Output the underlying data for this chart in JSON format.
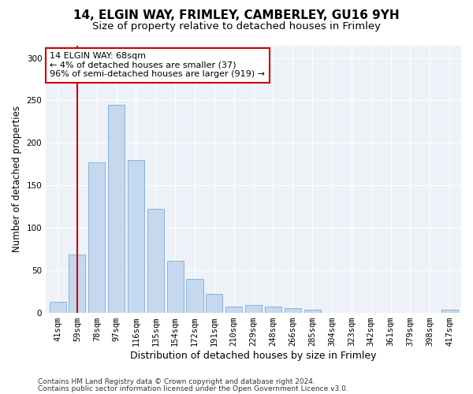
{
  "title_line1": "14, ELGIN WAY, FRIMLEY, CAMBERLEY, GU16 9YH",
  "title_line2": "Size of property relative to detached houses in Frimley",
  "xlabel": "Distribution of detached houses by size in Frimley",
  "ylabel": "Number of detached properties",
  "categories": [
    "41sqm",
    "59sqm",
    "78sqm",
    "97sqm",
    "116sqm",
    "135sqm",
    "154sqm",
    "172sqm",
    "191sqm",
    "210sqm",
    "229sqm",
    "248sqm",
    "266sqm",
    "285sqm",
    "304sqm",
    "323sqm",
    "342sqm",
    "361sqm",
    "379sqm",
    "398sqm",
    "417sqm"
  ],
  "values": [
    13,
    68,
    177,
    245,
    180,
    122,
    61,
    40,
    22,
    7,
    9,
    7,
    5,
    3,
    0,
    0,
    0,
    0,
    0,
    0,
    3
  ],
  "bar_color": "#c5d8f0",
  "bar_edge_color": "#7aadd4",
  "vline_x": 1.0,
  "vline_color": "#cc0000",
  "annotation_text": "14 ELGIN WAY: 68sqm\n← 4% of detached houses are smaller (37)\n96% of semi-detached houses are larger (919) →",
  "annotation_box_color": "#ffffff",
  "annotation_box_edge_color": "#cc0000",
  "ylim": [
    0,
    315
  ],
  "yticks": [
    0,
    50,
    100,
    150,
    200,
    250,
    300
  ],
  "footer_line1": "Contains HM Land Registry data © Crown copyright and database right 2024.",
  "footer_line2": "Contains public sector information licensed under the Open Government Licence v3.0.",
  "bg_color": "#ffffff",
  "plot_bg_color": "#eef2f8",
  "title_fontsize": 11,
  "subtitle_fontsize": 9.5,
  "xlabel_fontsize": 9,
  "ylabel_fontsize": 8.5,
  "tick_fontsize": 7.5,
  "footer_fontsize": 6.5,
  "annotation_fontsize": 8
}
